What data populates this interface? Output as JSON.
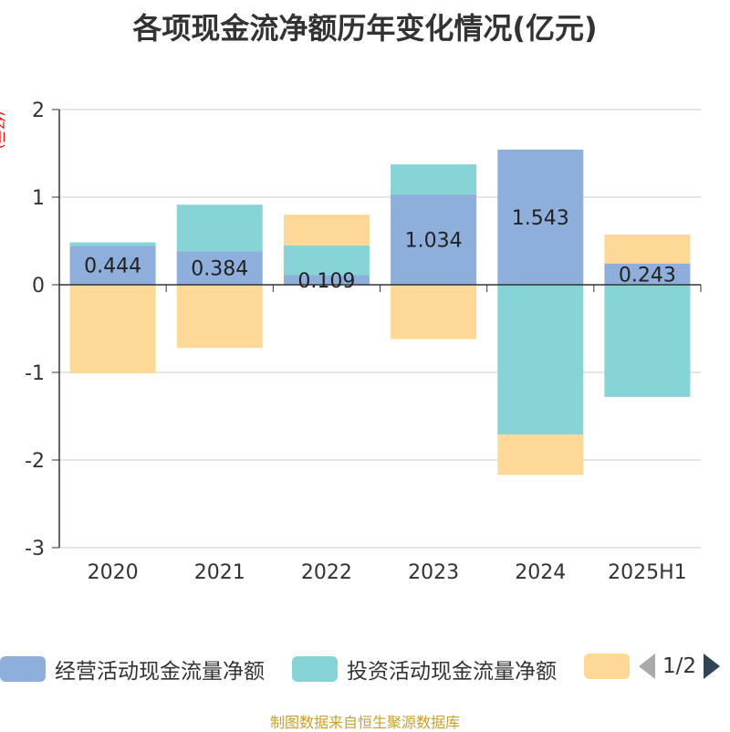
{
  "title": "各项现金流净额历年变化情况(亿元)",
  "y_unit": "(亿元)",
  "footer": "制图数据来自恒生聚源数据库",
  "legend": {
    "items": [
      {
        "label": "经营活动现金流量净额",
        "color": "#8eaedb"
      },
      {
        "label": "投资活动现金流量净额",
        "color": "#87d4d7"
      },
      {
        "label": "",
        "color": "#fdd896"
      }
    ],
    "page": "1/2"
  },
  "chart_data": {
    "type": "bar",
    "stacked": true,
    "categories": [
      "2020",
      "2021",
      "2022",
      "2023",
      "2024",
      "2025H1"
    ],
    "ylim": [
      -3,
      2
    ],
    "yticks": [
      2,
      1,
      0,
      -1,
      -2,
      -3
    ],
    "grid": true,
    "legend_position": "bottom",
    "series": [
      {
        "name": "经营活动现金流量净额",
        "color": "#8eaedb",
        "values": [
          0.444,
          0.384,
          0.109,
          1.034,
          1.543,
          0.243
        ],
        "labels": [
          "0.444",
          "0.384",
          "0.109",
          "1.034",
          "1.543",
          "0.243"
        ]
      },
      {
        "name": "投资活动现金流量净额",
        "color": "#87d4d7",
        "values": [
          0.04,
          0.53,
          0.34,
          0.34,
          -1.71,
          -1.28
        ]
      },
      {
        "color": "#fdd896",
        "values": [
          -1.01,
          -0.72,
          0.35,
          -0.62,
          -0.46,
          0.33
        ]
      }
    ]
  }
}
